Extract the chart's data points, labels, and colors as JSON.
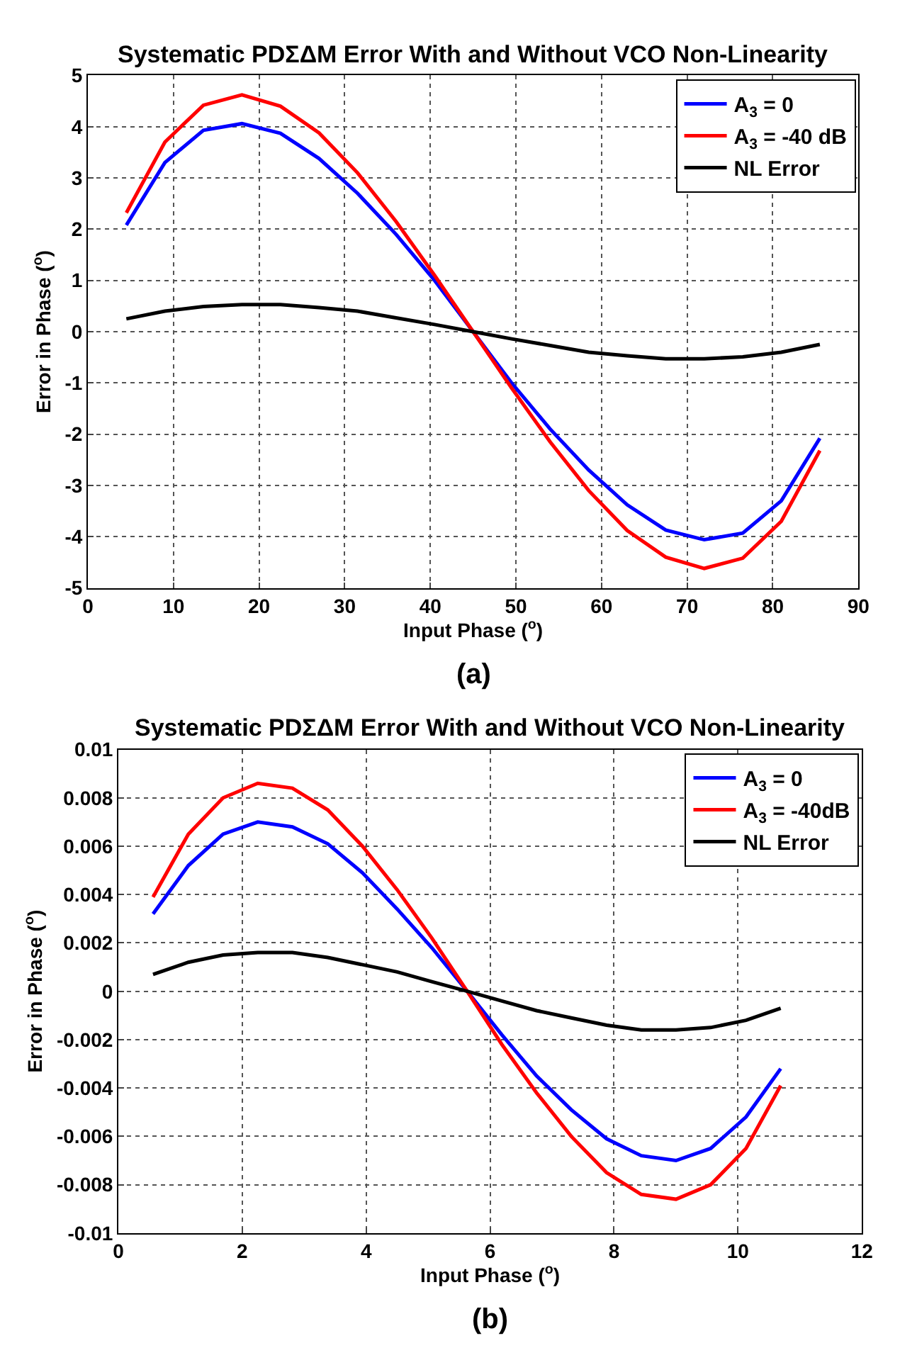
{
  "chart_data": [
    {
      "type": "line",
      "title": "Systematic PDΣΔM Error With and Without VCO Non-Linearity",
      "xlabel": "Input Phase ($^{o}$)",
      "ylabel": "Error in Phase ($^{o}$)",
      "annotations": [
        "(a)"
      ],
      "x": [
        4.5,
        9,
        13.5,
        18,
        22.5,
        27,
        31.5,
        36,
        40.5,
        45,
        49.5,
        54,
        58.5,
        63,
        67.5,
        72,
        76.5,
        81,
        85.5
      ],
      "series": [
        {
          "name": "A$_{3}$ = 0",
          "color": "#0000ff",
          "values": [
            2.08,
            3.3,
            3.93,
            4.06,
            3.87,
            3.38,
            2.7,
            1.9,
            1.0,
            0,
            -1.0,
            -1.9,
            -2.7,
            -3.38,
            -3.87,
            -4.06,
            -3.93,
            -3.3,
            -2.08
          ]
        },
        {
          "name": "A$_{3}$ = -40 dB",
          "color": "#ff0000",
          "values": [
            2.32,
            3.7,
            4.42,
            4.62,
            4.4,
            3.88,
            3.1,
            2.15,
            1.1,
            0,
            -1.1,
            -2.15,
            -3.1,
            -3.88,
            -4.4,
            -4.62,
            -4.42,
            -3.7,
            -2.32
          ]
        },
        {
          "name": "NL Error",
          "color": "#000000",
          "values": [
            0.25,
            0.4,
            0.49,
            0.53,
            0.53,
            0.47,
            0.4,
            0.27,
            0.14,
            0,
            -0.14,
            -0.27,
            -0.4,
            -0.47,
            -0.53,
            -0.53,
            -0.49,
            -0.4,
            -0.25
          ]
        }
      ],
      "xlim": [
        0,
        90
      ],
      "xticks": [
        0,
        10,
        20,
        30,
        40,
        50,
        60,
        70,
        80,
        90
      ],
      "ylim": [
        -5,
        5
      ],
      "yticks": [
        -5,
        -4,
        -3,
        -2,
        -1,
        0,
        1,
        2,
        3,
        4,
        5
      ],
      "grid": true,
      "legend": "top right",
      "line_style": "solid",
      "marker": "none"
    },
    {
      "type": "line",
      "title": "Systematic PDΣΔM Error With and Without VCO Non-Linearity",
      "xlabel": "Input Phase ($^{o}$)",
      "ylabel": "Error in Phase ($^{o}$)",
      "annotations": [
        "(b)"
      ],
      "x": [
        0.56,
        1.13,
        1.69,
        2.25,
        2.81,
        3.38,
        3.94,
        4.5,
        5.06,
        5.63,
        6.19,
        6.75,
        7.31,
        7.88,
        8.44,
        9,
        9.56,
        10.13,
        10.69
      ],
      "series": [
        {
          "name": "A$_{3}$ = 0",
          "color": "#0000ff",
          "values": [
            0.0032,
            0.0052,
            0.0065,
            0.007,
            0.0068,
            0.0061,
            0.0049,
            0.0034,
            0.0018,
            0,
            -0.0018,
            -0.0035,
            -0.0049,
            -0.0061,
            -0.0068,
            -0.007,
            -0.0065,
            -0.0052,
            -0.0032
          ]
        },
        {
          "name": "A$_{3}$ = -40dB",
          "color": "#ff0000",
          "values": [
            0.0039,
            0.0065,
            0.008,
            0.0086,
            0.0084,
            0.0075,
            0.006,
            0.0042,
            0.0022,
            0,
            -0.0022,
            -0.0042,
            -0.006,
            -0.0075,
            -0.0084,
            -0.0086,
            -0.008,
            -0.0065,
            -0.0039
          ]
        },
        {
          "name": "NL Error",
          "color": "#000000",
          "values": [
            0.0007,
            0.0012,
            0.0015,
            0.0016,
            0.0016,
            0.0014,
            0.0011,
            0.0008,
            0.0004,
            0,
            -0.0004,
            -0.0008,
            -0.0011,
            -0.0014,
            -0.0016,
            -0.0016,
            -0.0015,
            -0.0012,
            -0.0007
          ]
        }
      ],
      "xlim": [
        0,
        12
      ],
      "xticks": [
        0,
        2,
        4,
        6,
        8,
        10,
        12
      ],
      "ylim": [
        -0.01,
        0.01
      ],
      "yticks": [
        -0.01,
        -0.008,
        -0.006,
        -0.004,
        -0.002,
        0,
        0.002,
        0.004,
        0.006,
        0.008,
        0.01
      ],
      "grid": true,
      "legend": "top right",
      "line_style": "solid",
      "marker": "none"
    }
  ]
}
